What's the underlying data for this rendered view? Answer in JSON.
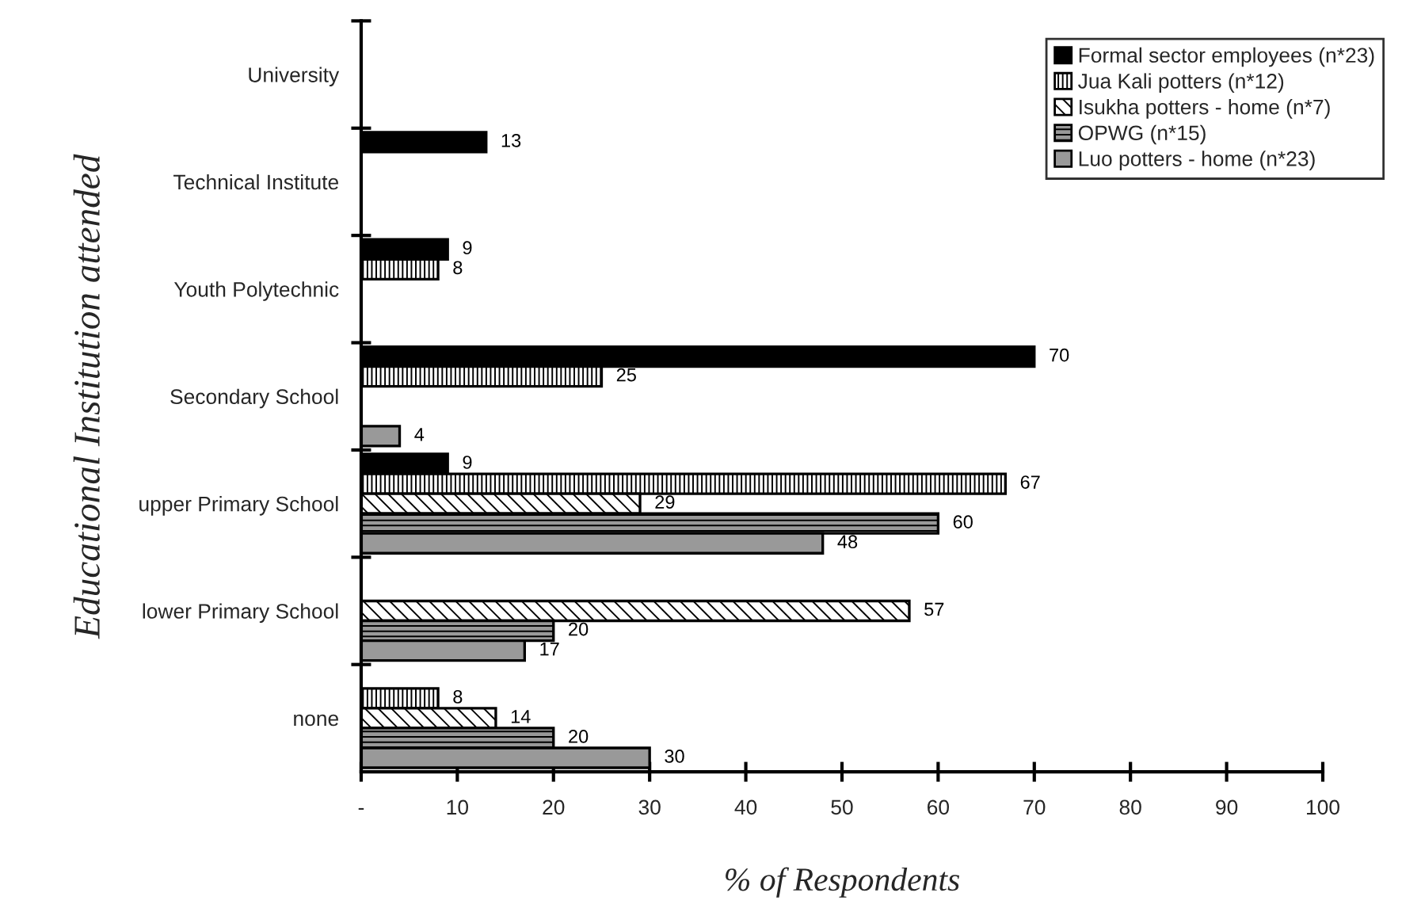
{
  "chart_data": {
    "type": "bar",
    "orientation": "horizontal",
    "xlabel": "% of Respondents",
    "ylabel": "Educational Institution attended",
    "categories": [
      "University",
      "Technical Institute",
      "Youth Polytechnic",
      "Secondary School",
      "upper Primary School",
      "lower Primary School",
      "none"
    ],
    "series": [
      {
        "name": "Formal sector employees (n*23)",
        "color": "#000000",
        "values": [
          null,
          13,
          9,
          70,
          9,
          null,
          null
        ]
      },
      {
        "name": "Jua Kali potters (n*12)",
        "color": "#ffffff",
        "values": [
          null,
          null,
          8,
          25,
          67,
          null,
          8
        ]
      },
      {
        "name": "Isukha potters - home (n*7)",
        "color": "#ffffff",
        "values": [
          null,
          null,
          null,
          null,
          29,
          57,
          14
        ]
      },
      {
        "name": "OPWG (n*15)",
        "color": "#999999",
        "values": [
          null,
          null,
          null,
          null,
          60,
          20,
          20
        ]
      },
      {
        "name": "Luo potters - home (n*23)",
        "color": "#999999",
        "values": [
          null,
          null,
          null,
          4,
          48,
          17,
          30
        ]
      }
    ],
    "xlim": [
      0,
      100
    ],
    "xticks": [
      {
        "value": 0,
        "label": "-"
      },
      10,
      20,
      30,
      40,
      50,
      60,
      70,
      80,
      90,
      100
    ],
    "data_labels": true,
    "legend": "top right",
    "grid": false
  }
}
